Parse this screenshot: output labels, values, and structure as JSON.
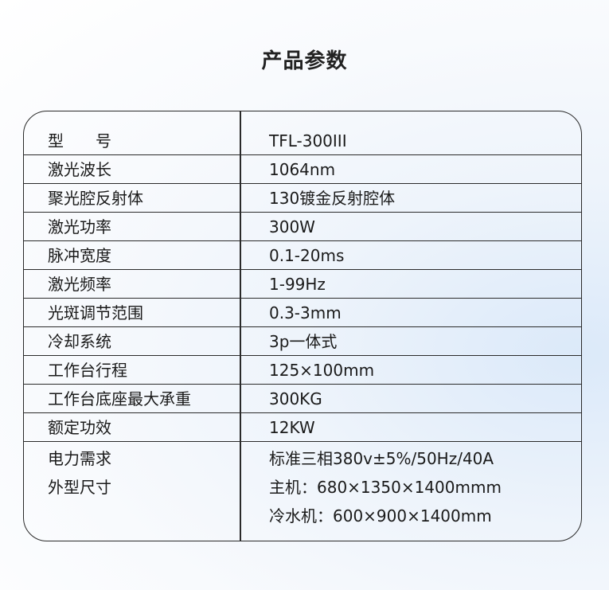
{
  "title": "产品参数",
  "rows": [
    {
      "label": "型　　号",
      "value": "TFL-300III"
    },
    {
      "label": "激光波长",
      "value": "1064nm"
    },
    {
      "label": "聚光腔反射体",
      "value": "130镀金反射腔体"
    },
    {
      "label": "激光功率",
      "value": "300W"
    },
    {
      "label": "脉冲宽度",
      "value": "0.1-20ms"
    },
    {
      "label": "激光频率",
      "value": "1-99Hz"
    },
    {
      "label": "光斑调节范围",
      "value": "0.3-3mm"
    },
    {
      "label": "冷却系统",
      "value": "3p一体式"
    },
    {
      "label": "工作台行程",
      "value": "125×100mm"
    },
    {
      "label": "工作台底座最大承重",
      "value": "300KG"
    },
    {
      "label": "额定功效",
      "value": "12KW"
    }
  ],
  "last": {
    "labels": [
      "电力需求",
      "外型尺寸"
    ],
    "values": [
      "标准三相380v±5%/50Hz/40A",
      "主机：680×1350×1400mmm",
      "冷水机：600×900×1400mm"
    ]
  }
}
